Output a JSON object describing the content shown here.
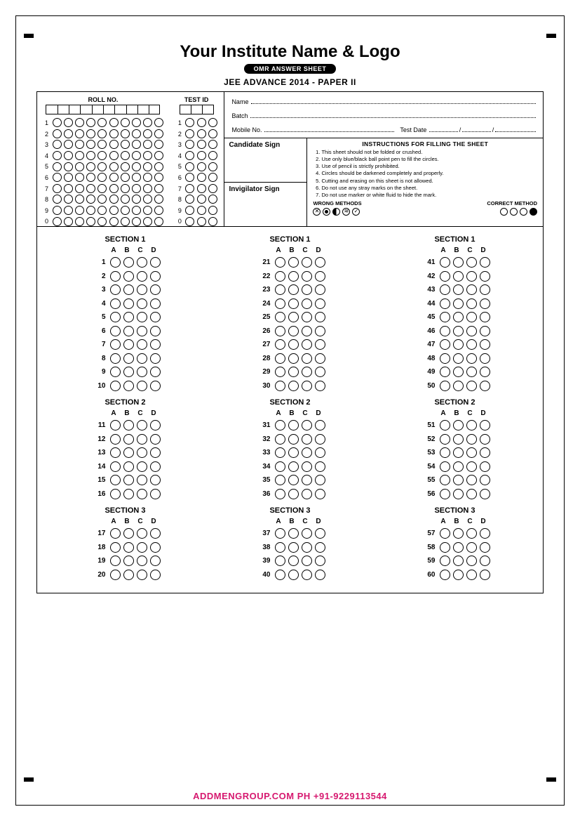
{
  "header": {
    "title": "Your Institute Name & Logo",
    "pill": "OMR ANSWER SHEET",
    "exam": "JEE ADVANCE 2014 - PAPER II"
  },
  "ids": {
    "roll_label": "ROLL NO.",
    "test_label": "TEST ID",
    "digits": [
      "1",
      "2",
      "3",
      "4",
      "5",
      "6",
      "7",
      "8",
      "9",
      "0"
    ],
    "roll_cols": 10,
    "test_cols": 3
  },
  "fields": {
    "name": "Name",
    "batch": "Batch",
    "mobile": "Mobile No.",
    "testdate": "Test Date",
    "date_sep": "/"
  },
  "signs": {
    "candidate": "Candidate Sign",
    "invigilator": "Invigilator Sign"
  },
  "instructions": {
    "title": "INSTRUCTIONS FOR FILLING THE SHEET",
    "items": [
      "This sheet should not be folded or crushed.",
      "Use only blue/black ball point pen to fill the circles.",
      "Use of pencil is strictly prohibited.",
      "Circles should be darkened completely and properly.",
      "Cutting and erasing on this sheet is not allowed.",
      "Do not use any stray marks on the sheet.",
      "Do not use marker or white fluid to hide the mark."
    ],
    "wrong_label": "WRONG METHODS",
    "correct_label": "CORRECT METHOD"
  },
  "answers": {
    "options": [
      "A",
      "B",
      "C",
      "D"
    ],
    "columns": [
      {
        "sections": [
          {
            "title": "SECTION 1",
            "start": 1,
            "end": 10
          },
          {
            "title": "SECTION 2",
            "start": 11,
            "end": 16
          },
          {
            "title": "SECTION 3",
            "start": 17,
            "end": 20
          }
        ]
      },
      {
        "sections": [
          {
            "title": "SECTION 1",
            "start": 21,
            "end": 30
          },
          {
            "title": "SECTION 2",
            "start": 31,
            "end": 36
          },
          {
            "title": "SECTION 3",
            "start": 37,
            "end": 40
          }
        ]
      },
      {
        "sections": [
          {
            "title": "SECTION 1",
            "start": 41,
            "end": 50
          },
          {
            "title": "SECTION 2",
            "start": 51,
            "end": 56
          },
          {
            "title": "SECTION 3",
            "start": 57,
            "end": 60
          }
        ]
      }
    ]
  },
  "footer": "ADDMENGROUP.COM    PH +91-9229113544",
  "colors": {
    "accent": "#d6186f",
    "line": "#000000",
    "bg": "#ffffff"
  }
}
